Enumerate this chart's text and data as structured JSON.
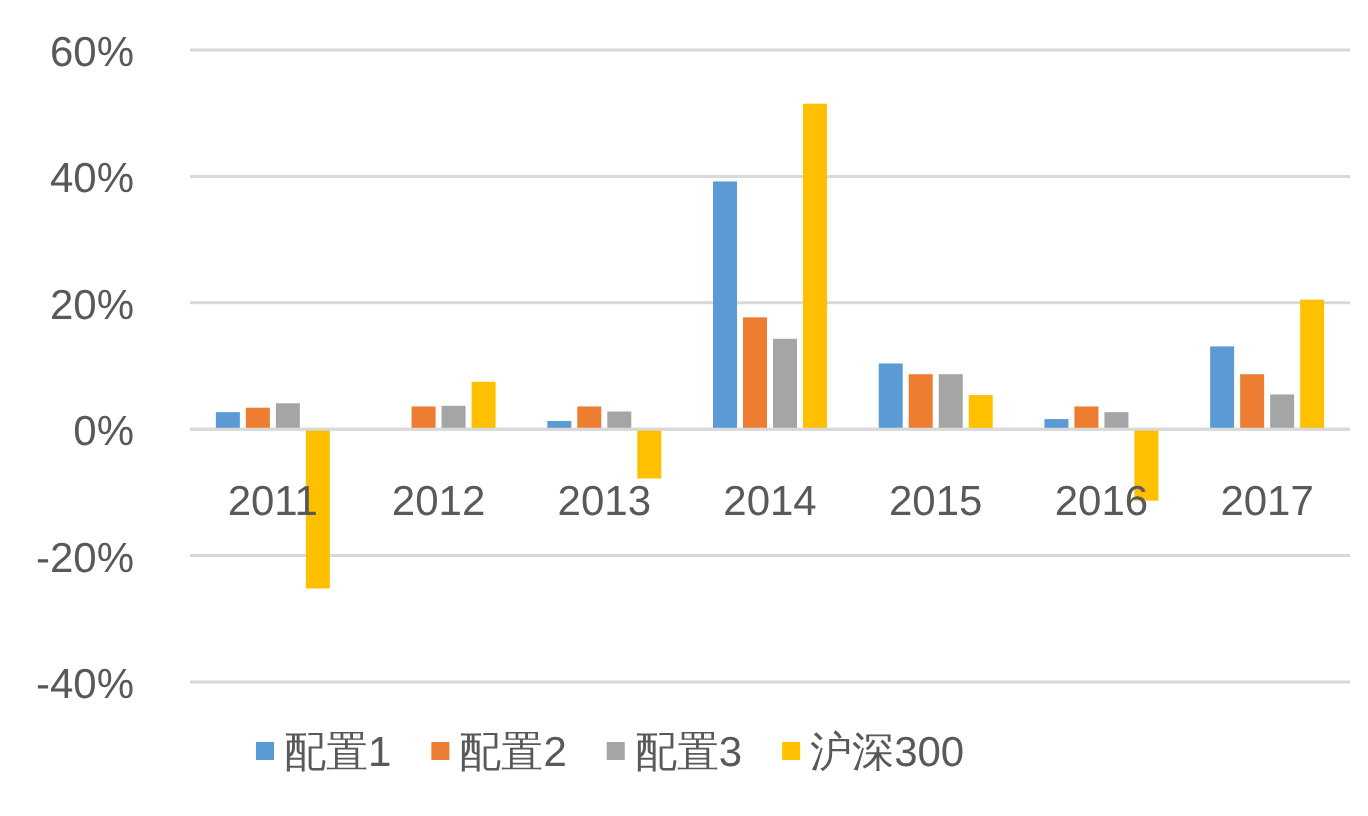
{
  "chart_data": {
    "type": "bar",
    "categories": [
      "2011",
      "2012",
      "2013",
      "2014",
      "2015",
      "2016",
      "2017"
    ],
    "series": [
      {
        "name": "配置1",
        "color": "#5b9bd5",
        "values": [
          2.7,
          0,
          1.3,
          39.2,
          10.4,
          1.6,
          13.1
        ]
      },
      {
        "name": "配置2",
        "color": "#ed7d31",
        "values": [
          3.4,
          3.6,
          3.6,
          17.7,
          8.7,
          3.6,
          8.7
        ]
      },
      {
        "name": "配置3",
        "color": "#a5a5a5",
        "values": [
          4.1,
          3.7,
          2.8,
          14.3,
          8.7,
          2.7,
          5.5
        ]
      },
      {
        "name": "沪深300",
        "color": "#ffc000",
        "values": [
          -25.2,
          7.5,
          -7.8,
          51.5,
          5.4,
          -11.3,
          20.5
        ]
      }
    ],
    "ylim": [
      -40,
      60
    ],
    "yticks": [
      {
        "value": -40,
        "label": "-40%"
      },
      {
        "value": -20,
        "label": "-20%"
      },
      {
        "value": 0,
        "label": "0%"
      },
      {
        "value": 20,
        "label": "20%"
      },
      {
        "value": 40,
        "label": "40%"
      },
      {
        "value": 60,
        "label": "60%"
      }
    ],
    "grid": "y",
    "legend": "bottom"
  }
}
